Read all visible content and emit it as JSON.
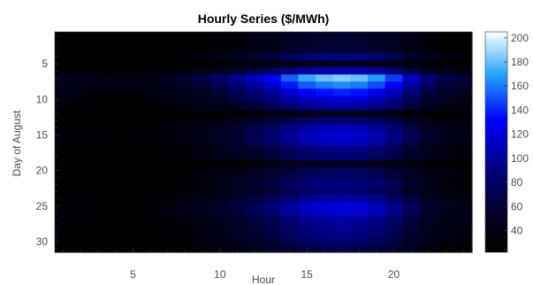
{
  "chart_data": {
    "type": "heatmap",
    "title": "Hourly Series ($/MWh)",
    "xlabel": "Hour",
    "ylabel": "Day of August",
    "x_range": [
      1,
      24
    ],
    "y_range": [
      1,
      31
    ],
    "x_ticks": [
      5,
      10,
      15,
      20
    ],
    "y_ticks": [
      5,
      10,
      15,
      20,
      25,
      30
    ],
    "colorbar": {
      "min": 22,
      "max": 205,
      "ticks": [
        40,
        60,
        80,
        100,
        120,
        140,
        160,
        180,
        200
      ]
    },
    "colormap": [
      "#000000",
      "#00002e",
      "#00008c",
      "#0000ff",
      "#20a0ff",
      "#ffffff"
    ],
    "day_base": [
      28,
      28,
      30,
      44,
      24,
      52,
      88,
      78,
      66,
      58,
      48,
      22,
      40,
      52,
      56,
      54,
      44,
      42,
      22,
      36,
      40,
      44,
      40,
      50,
      58,
      56,
      48,
      46,
      44,
      40,
      34
    ],
    "hour_weight": [
      0.55,
      0.5,
      0.47,
      0.45,
      0.46,
      0.5,
      0.58,
      0.66,
      0.78,
      0.92,
      1.1,
      1.3,
      1.5,
      1.75,
      1.95,
      2.05,
      2.1,
      2.05,
      1.9,
      1.65,
      1.3,
      1.0,
      0.8,
      0.7
    ],
    "low_cells": [
      [
        5,
        7
      ],
      [
        12,
        4
      ],
      [
        12,
        5
      ],
      [
        12,
        6
      ],
      [
        12,
        7
      ],
      [
        19,
        2
      ],
      [
        19,
        3
      ],
      [
        19,
        4
      ],
      [
        19,
        5
      ],
      [
        19,
        6
      ],
      [
        19,
        7
      ],
      [
        19,
        8
      ],
      [
        20,
        4
      ]
    ]
  }
}
